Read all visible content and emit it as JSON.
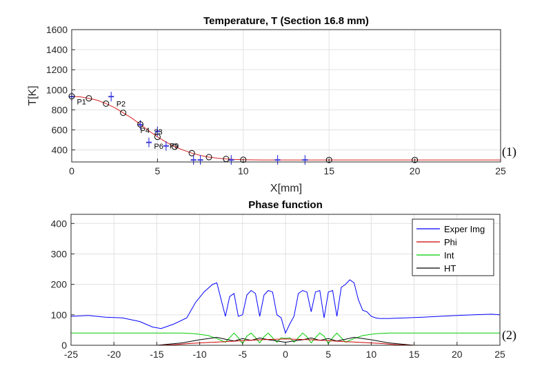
{
  "chart_data": [
    {
      "type": "line",
      "title": "Temperature, T (Section 16.8 mm)",
      "xlabel": "X[mm]",
      "ylabel": "T[K]",
      "xlim": [
        0,
        25
      ],
      "ylim": [
        280,
        1600
      ],
      "xticks": [
        0,
        5,
        10,
        15,
        20,
        25
      ],
      "yticks": [
        400,
        600,
        800,
        1000,
        1200,
        1400,
        1600
      ],
      "xtick_labels": [
        "0",
        "5",
        "10",
        "15",
        "20",
        "25"
      ],
      "ytick_labels": [
        "400",
        "600",
        "800",
        "1000",
        "1200",
        "1400",
        "1600"
      ],
      "grid": true,
      "colors": {
        "fit_line": "#d62020",
        "measured": "#3b3bdc",
        "circles": "#000000"
      },
      "fit_line": {
        "x": [
          0,
          0.5,
          1,
          1.5,
          2,
          2.5,
          3,
          3.5,
          4,
          4.5,
          5,
          5.5,
          6,
          6.5,
          7,
          7.5,
          8,
          8.5,
          9,
          9.5,
          10,
          11,
          12,
          13,
          14,
          15,
          17,
          20,
          22,
          25
        ],
        "y": [
          935,
          930,
          915,
          895,
          862,
          822,
          770,
          718,
          655,
          590,
          530,
          478,
          432,
          398,
          368,
          345,
          328,
          318,
          310,
          305,
          302,
          300,
          300,
          300,
          300,
          300,
          300,
          300,
          300,
          300
        ]
      },
      "circle_points": {
        "x": [
          0,
          1,
          2,
          3,
          4,
          5,
          6,
          7,
          8,
          9,
          10,
          15,
          20
        ],
        "y": [
          935,
          915,
          862,
          770,
          655,
          530,
          432,
          368,
          328,
          310,
          302,
          300,
          300
        ]
      },
      "measured_points": {
        "x": [
          0,
          2.3,
          4.0,
          4.5,
          5.0,
          5.5,
          7.1,
          7.5,
          9.3,
          12.0,
          13.6
        ],
        "y": [
          932,
          932,
          650,
          475,
          585,
          440,
          300,
          300,
          300,
          300,
          300
        ]
      },
      "point_labels": [
        {
          "text": "P1",
          "x": 0.3,
          "y": 855
        },
        {
          "text": "P2",
          "x": 2.6,
          "y": 835
        },
        {
          "text": "P4",
          "x": 4.0,
          "y": 570
        },
        {
          "text": "23",
          "x": 4.8,
          "y": 555
        },
        {
          "text": "P6",
          "x": 4.8,
          "y": 410
        },
        {
          "text": "P9",
          "x": 5.7,
          "y": 415
        }
      ],
      "annotation": "(1)"
    },
    {
      "type": "line",
      "title": "Phase function",
      "xlabel": "",
      "ylabel": "",
      "xlim": [
        -25,
        25
      ],
      "ylim": [
        0,
        430
      ],
      "xticks": [
        -25,
        -20,
        -15,
        -10,
        -5,
        0,
        5,
        10,
        15,
        20,
        25
      ],
      "yticks": [
        0,
        100,
        200,
        300,
        400
      ],
      "xtick_labels": [
        "-25",
        "-20",
        "-15",
        "-10",
        "-5",
        "0",
        "5",
        "10",
        "15",
        "20",
        "25"
      ],
      "ytick_labels": [
        "0",
        "100",
        "200",
        "300",
        "400"
      ],
      "grid": true,
      "legend": {
        "placement": "top-right"
      },
      "series": [
        {
          "name": "Exper Img",
          "color": "#0000ff",
          "x": [
            -25,
            -23,
            -21,
            -19,
            -17,
            -15.5,
            -14.5,
            -13,
            -11.5,
            -10.5,
            -9.5,
            -8.5,
            -8,
            -7.5,
            -7,
            -6.5,
            -6,
            -5.5,
            -5,
            -4.5,
            -4,
            -3.5,
            -3,
            -2.5,
            -2,
            -1.5,
            -1,
            -0.5,
            0,
            0.5,
            1,
            1.5,
            2,
            2.5,
            3,
            3.5,
            4,
            4.5,
            5,
            5.5,
            6,
            6.5,
            7,
            7.5,
            8,
            8.5,
            9,
            9.5,
            10,
            10.5,
            11,
            12,
            14,
            16,
            18,
            20,
            22,
            24,
            25
          ],
          "y": [
            95,
            98,
            92,
            90,
            78,
            60,
            55,
            70,
            90,
            140,
            175,
            200,
            205,
            150,
            95,
            160,
            170,
            95,
            100,
            165,
            180,
            170,
            95,
            165,
            180,
            175,
            100,
            90,
            40,
            70,
            95,
            170,
            180,
            175,
            110,
            175,
            180,
            90,
            175,
            180,
            95,
            190,
            200,
            215,
            205,
            150,
            115,
            110,
            95,
            90,
            88,
            88,
            90,
            92,
            95,
            98,
            100,
            102,
            100
          ]
        },
        {
          "name": "Phi",
          "color": "#cc0000",
          "x": [
            -25,
            -15,
            -13,
            -11,
            -9,
            -7,
            -5,
            -3,
            -1,
            0,
            1,
            3,
            5,
            7,
            9,
            11,
            13,
            15,
            25
          ],
          "y": [
            0,
            0,
            2,
            6,
            9,
            12,
            15,
            18,
            20,
            21,
            20,
            18,
            15,
            12,
            9,
            6,
            2,
            0,
            0
          ]
        },
        {
          "name": "Int",
          "color": "#00cc00",
          "x": [
            -25,
            -12,
            -10.5,
            -9,
            -8,
            -7,
            -6.5,
            -6,
            -5.5,
            -5,
            -4.5,
            -4,
            -3.5,
            -3,
            -2.5,
            -2,
            -1.5,
            -1,
            -0.5,
            0,
            0.5,
            1,
            1.5,
            2,
            2.5,
            3,
            3.5,
            4,
            4.5,
            5,
            5.5,
            6,
            6.5,
            7,
            8,
            9,
            10.5,
            12,
            25
          ],
          "y": [
            40,
            40,
            38,
            32,
            22,
            10,
            25,
            40,
            25,
            5,
            30,
            40,
            25,
            8,
            28,
            40,
            25,
            10,
            25,
            22,
            25,
            10,
            25,
            40,
            28,
            8,
            25,
            40,
            30,
            5,
            25,
            40,
            25,
            10,
            22,
            32,
            38,
            40,
            40
          ]
        },
        {
          "name": "HT",
          "color": "#000000",
          "x": [
            -25,
            -15,
            -12,
            -10,
            -8,
            -7,
            -6,
            -5,
            -4,
            -3,
            -2,
            -1,
            0,
            1,
            2,
            3,
            4,
            5,
            6,
            7,
            8,
            10,
            12,
            15,
            25
          ],
          "y": [
            0,
            0,
            8,
            18,
            26,
            20,
            14,
            22,
            16,
            24,
            18,
            14,
            10,
            14,
            18,
            24,
            16,
            22,
            14,
            20,
            26,
            18,
            8,
            0,
            0
          ]
        }
      ],
      "annotation": "(2)"
    }
  ]
}
